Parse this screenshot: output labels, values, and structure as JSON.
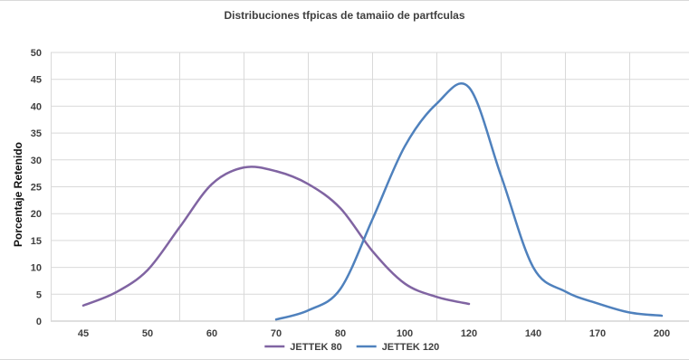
{
  "chart_data": {
    "type": "line",
    "title": "Distribuciones tfpicas de tamaiio de partfculas",
    "xlabel": "",
    "ylabel": "Porcentaje Retenido",
    "categories": [
      "45",
      "50",
      "60",
      "70",
      "80",
      "100",
      "120",
      "140",
      "170",
      "200"
    ],
    "ylim": [
      0,
      50
    ],
    "yticks": [
      0,
      5,
      10,
      15,
      20,
      25,
      30,
      35,
      40,
      45,
      50
    ],
    "grid": true,
    "legend_position": "bottom",
    "smooth": true,
    "series": [
      {
        "name": "JETTEK 80",
        "color": "#8064a2",
        "points": [
          {
            "x": 45,
            "y": 2.9
          },
          {
            "x": 47.5,
            "y": 5.3
          },
          {
            "x": 50,
            "y": 9.5
          },
          {
            "x": 55,
            "y": 17.5
          },
          {
            "x": 60,
            "y": 25.5
          },
          {
            "x": 65,
            "y": 28.6
          },
          {
            "x": 70,
            "y": 27.9
          },
          {
            "x": 75,
            "y": 25.5
          },
          {
            "x": 80,
            "y": 21.0
          },
          {
            "x": 90,
            "y": 13.0
          },
          {
            "x": 100,
            "y": 7.0
          },
          {
            "x": 110,
            "y": 4.5
          },
          {
            "x": 120,
            "y": 3.2
          }
        ]
      },
      {
        "name": "JETTEK 120",
        "color": "#4f81bd",
        "points": [
          {
            "x": 70,
            "y": 0.3
          },
          {
            "x": 75,
            "y": 2.0
          },
          {
            "x": 80,
            "y": 6.0
          },
          {
            "x": 90,
            "y": 19.0
          },
          {
            "x": 100,
            "y": 32.5
          },
          {
            "x": 110,
            "y": 40.5
          },
          {
            "x": 120,
            "y": 43.5
          },
          {
            "x": 130,
            "y": 27.0
          },
          {
            "x": 140,
            "y": 10.0
          },
          {
            "x": 155,
            "y": 5.5
          },
          {
            "x": 170,
            "y": 3.3
          },
          {
            "x": 185,
            "y": 1.6
          },
          {
            "x": 200,
            "y": 1.0
          }
        ]
      }
    ]
  }
}
